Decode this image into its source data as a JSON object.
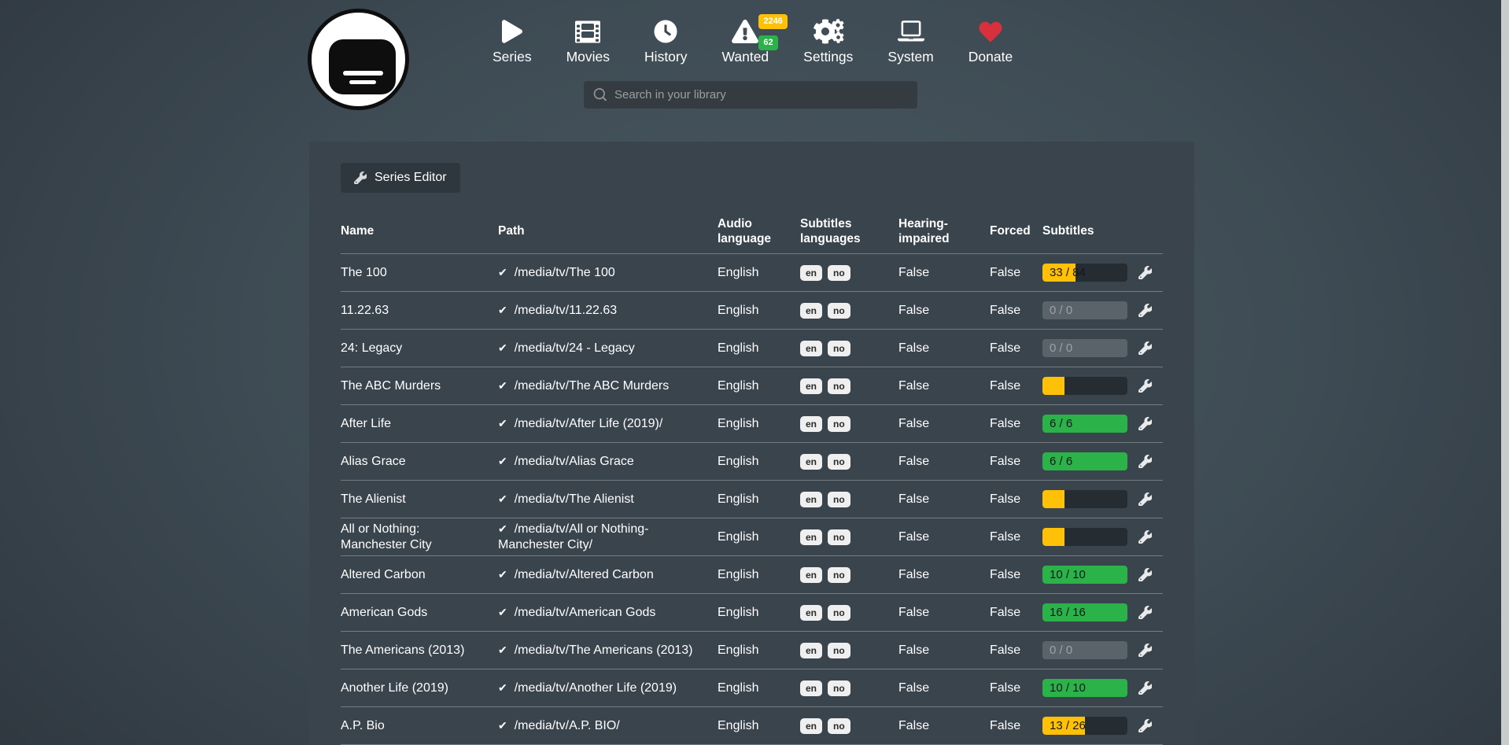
{
  "colors": {
    "warning": "#ffc107",
    "success": "#2bb34a",
    "danger": "#d9303e"
  },
  "nav": {
    "items": [
      {
        "label": "Series",
        "icon": "play-icon"
      },
      {
        "label": "Movies",
        "icon": "film-icon"
      },
      {
        "label": "History",
        "icon": "clock-icon"
      },
      {
        "label": "Wanted",
        "icon": "warning-triangle-icon",
        "badges": [
          {
            "value": "2246",
            "state": "warning"
          },
          {
            "value": "62",
            "state": "success"
          }
        ]
      },
      {
        "label": "Settings",
        "icon": "gears-icon"
      },
      {
        "label": "System",
        "icon": "laptop-icon"
      },
      {
        "label": "Donate",
        "icon": "heart-icon"
      }
    ]
  },
  "search": {
    "placeholder": "Search in your library"
  },
  "toolbar": {
    "series_editor_label": "Series Editor"
  },
  "table": {
    "headers": [
      "Name",
      "Path",
      "Audio language",
      "Subtitles languages",
      "Hearing-impaired",
      "Forced",
      "Subtitles"
    ],
    "rows": [
      {
        "name": "The 100",
        "path": "/media/tv/The 100",
        "audio_language": "English",
        "subtitle_languages": [
          "en",
          "no"
        ],
        "hearing_impaired": "False",
        "forced": "False",
        "subtitles": {
          "label": "33 / 84",
          "pct": 39,
          "state": "warning"
        }
      },
      {
        "name": "11.22.63",
        "path": "/media/tv/11.22.63",
        "audio_language": "English",
        "subtitle_languages": [
          "en",
          "no"
        ],
        "hearing_impaired": "False",
        "forced": "False",
        "subtitles": {
          "label": "0 / 0",
          "pct": 0,
          "state": "disabled"
        }
      },
      {
        "name": "24: Legacy",
        "path": "/media/tv/24 - Legacy",
        "audio_language": "English",
        "subtitle_languages": [
          "en",
          "no"
        ],
        "hearing_impaired": "False",
        "forced": "False",
        "subtitles": {
          "label": "0 / 0",
          "pct": 0,
          "state": "disabled"
        }
      },
      {
        "name": "The ABC Murders",
        "path": "/media/tv/The ABC Murders",
        "audio_language": "English",
        "subtitle_languages": [
          "en",
          "no"
        ],
        "hearing_impaired": "False",
        "forced": "False",
        "subtitles": {
          "label": "",
          "pct": 26,
          "state": "warning"
        }
      },
      {
        "name": "After Life",
        "path": "/media/tv/After Life (2019)/",
        "audio_language": "English",
        "subtitle_languages": [
          "en",
          "no"
        ],
        "hearing_impaired": "False",
        "forced": "False",
        "subtitles": {
          "label": "6 / 6",
          "pct": 100,
          "state": "success"
        }
      },
      {
        "name": "Alias Grace",
        "path": "/media/tv/Alias Grace",
        "audio_language": "English",
        "subtitle_languages": [
          "en",
          "no"
        ],
        "hearing_impaired": "False",
        "forced": "False",
        "subtitles": {
          "label": "6 / 6",
          "pct": 100,
          "state": "success"
        }
      },
      {
        "name": "The Alienist",
        "path": "/media/tv/The Alienist",
        "audio_language": "English",
        "subtitle_languages": [
          "en",
          "no"
        ],
        "hearing_impaired": "False",
        "forced": "False",
        "subtitles": {
          "label": "",
          "pct": 26,
          "state": "warning"
        }
      },
      {
        "name": "All or Nothing: Manchester City",
        "path": "/media/tv/All or Nothing- Manchester City/",
        "audio_language": "English",
        "subtitle_languages": [
          "en",
          "no"
        ],
        "hearing_impaired": "False",
        "forced": "False",
        "subtitles": {
          "label": "",
          "pct": 26,
          "state": "warning"
        }
      },
      {
        "name": "Altered Carbon",
        "path": "/media/tv/Altered Carbon",
        "audio_language": "English",
        "subtitle_languages": [
          "en",
          "no"
        ],
        "hearing_impaired": "False",
        "forced": "False",
        "subtitles": {
          "label": "10 / 10",
          "pct": 100,
          "state": "success"
        }
      },
      {
        "name": "American Gods",
        "path": "/media/tv/American Gods",
        "audio_language": "English",
        "subtitle_languages": [
          "en",
          "no"
        ],
        "hearing_impaired": "False",
        "forced": "False",
        "subtitles": {
          "label": "16 / 16",
          "pct": 100,
          "state": "success"
        }
      },
      {
        "name": "The Americans (2013)",
        "path": "/media/tv/The Americans (2013)",
        "audio_language": "English",
        "subtitle_languages": [
          "en",
          "no"
        ],
        "hearing_impaired": "False",
        "forced": "False",
        "subtitles": {
          "label": "0 / 0",
          "pct": 0,
          "state": "disabled"
        }
      },
      {
        "name": "Another Life (2019)",
        "path": "/media/tv/Another Life (2019)",
        "audio_language": "English",
        "subtitle_languages": [
          "en",
          "no"
        ],
        "hearing_impaired": "False",
        "forced": "False",
        "subtitles": {
          "label": "10 / 10",
          "pct": 100,
          "state": "success"
        }
      },
      {
        "name": "A.P. Bio",
        "path": "/media/tv/A.P. BIO/",
        "audio_language": "English",
        "subtitle_languages": [
          "en",
          "no"
        ],
        "hearing_impaired": "False",
        "forced": "False",
        "subtitles": {
          "label": "13 / 26",
          "pct": 50,
          "state": "warning"
        }
      }
    ]
  }
}
